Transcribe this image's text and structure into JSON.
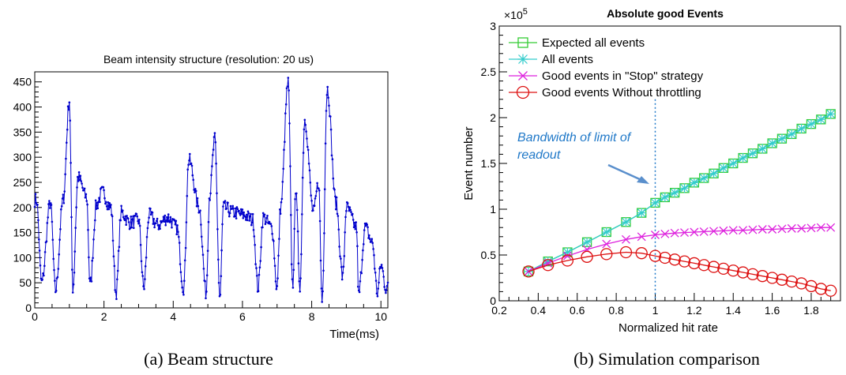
{
  "captions": {
    "a": "(a) Beam structure",
    "b": "(b) Simulation comparison"
  },
  "chart_data": [
    {
      "id": "a",
      "type": "line",
      "title": "Beam intensity structure (resolution: 20 us)",
      "xlabel": "Time(ms)",
      "ylabel": "",
      "xlim": [
        0,
        10.2
      ],
      "ylim": [
        0,
        470
      ],
      "xticks": [
        "0",
        "2",
        "4",
        "6",
        "8",
        "10"
      ],
      "yticks": [
        "0",
        "50",
        "100",
        "150",
        "200",
        "250",
        "300",
        "350",
        "400",
        "450"
      ],
      "series_color": "#0000cc",
      "peaks": [
        {
          "x": 0.05,
          "y": 215
        },
        {
          "x": 0.45,
          "y": 210
        },
        {
          "x": 0.82,
          "y": 215
        },
        {
          "x": 1.0,
          "y": 413
        },
        {
          "x": 1.25,
          "y": 260
        },
        {
          "x": 1.5,
          "y": 220
        },
        {
          "x": 1.78,
          "y": 205
        },
        {
          "x": 1.95,
          "y": 230
        },
        {
          "x": 2.2,
          "y": 200
        },
        {
          "x": 2.5,
          "y": 190
        },
        {
          "x": 2.75,
          "y": 170
        },
        {
          "x": 3.0,
          "y": 175
        },
        {
          "x": 3.3,
          "y": 185
        },
        {
          "x": 3.55,
          "y": 165
        },
        {
          "x": 3.85,
          "y": 180
        },
        {
          "x": 4.1,
          "y": 160
        },
        {
          "x": 4.45,
          "y": 295
        },
        {
          "x": 4.75,
          "y": 200
        },
        {
          "x": 5.05,
          "y": 225
        },
        {
          "x": 5.2,
          "y": 335
        },
        {
          "x": 5.45,
          "y": 200
        },
        {
          "x": 5.75,
          "y": 190
        },
        {
          "x": 6.05,
          "y": 185
        },
        {
          "x": 6.3,
          "y": 175
        },
        {
          "x": 6.6,
          "y": 180
        },
        {
          "x": 6.85,
          "y": 160
        },
        {
          "x": 7.1,
          "y": 200
        },
        {
          "x": 7.32,
          "y": 448
        },
        {
          "x": 7.55,
          "y": 245
        },
        {
          "x": 7.8,
          "y": 375
        },
        {
          "x": 8.05,
          "y": 190
        },
        {
          "x": 8.2,
          "y": 250
        },
        {
          "x": 8.45,
          "y": 437
        },
        {
          "x": 8.7,
          "y": 210
        },
        {
          "x": 9.0,
          "y": 200
        },
        {
          "x": 9.3,
          "y": 160
        },
        {
          "x": 9.55,
          "y": 160
        },
        {
          "x": 9.75,
          "y": 130
        },
        {
          "x": 10.0,
          "y": 85
        }
      ],
      "valleys": [
        {
          "x": 0.2,
          "y": 50
        },
        {
          "x": 0.6,
          "y": 35
        },
        {
          "x": 1.1,
          "y": 40
        },
        {
          "x": 1.6,
          "y": 45
        },
        {
          "x": 2.35,
          "y": 30
        },
        {
          "x": 3.15,
          "y": 40
        },
        {
          "x": 4.3,
          "y": 40
        },
        {
          "x": 4.95,
          "y": 30
        },
        {
          "x": 5.35,
          "y": 20
        },
        {
          "x": 6.45,
          "y": 40
        },
        {
          "x": 7.0,
          "y": 40
        },
        {
          "x": 7.45,
          "y": 45
        },
        {
          "x": 7.65,
          "y": 35
        },
        {
          "x": 8.3,
          "y": 15
        },
        {
          "x": 8.9,
          "y": 60
        },
        {
          "x": 9.35,
          "y": 25
        },
        {
          "x": 9.9,
          "y": 30
        },
        {
          "x": 10.15,
          "y": 40
        }
      ],
      "points_per_ms": 50
    },
    {
      "id": "b",
      "type": "line",
      "title": "Absolute good Events",
      "xlabel": "Normalized hit rate",
      "ylabel": "Event number",
      "xlim": [
        0.2,
        1.95
      ],
      "ylim": [
        0,
        3
      ],
      "y_multiplier_label": "×10",
      "y_multiplier_exp": "5",
      "xticks": [
        "0.2",
        "0.4",
        "0.6",
        "0.8",
        "1",
        "1.2",
        "1.4",
        "1.6",
        "1.8"
      ],
      "yticks": [
        "0",
        "0.5",
        "1",
        "1.5",
        "2",
        "2.5",
        "3"
      ],
      "x": [
        0.35,
        0.45,
        0.55,
        0.65,
        0.75,
        0.85,
        0.93,
        1.0,
        1.05,
        1.1,
        1.15,
        1.2,
        1.25,
        1.3,
        1.35,
        1.4,
        1.45,
        1.5,
        1.55,
        1.6,
        1.65,
        1.7,
        1.75,
        1.8,
        1.85,
        1.9
      ],
      "series": [
        {
          "name": "Expected all events",
          "color": "#33cc33",
          "marker": "square",
          "values": [
            0.32,
            0.43,
            0.53,
            0.64,
            0.75,
            0.86,
            0.96,
            1.07,
            1.13,
            1.18,
            1.23,
            1.29,
            1.34,
            1.39,
            1.45,
            1.5,
            1.56,
            1.61,
            1.66,
            1.72,
            1.77,
            1.82,
            1.88,
            1.93,
            1.98,
            2.04
          ]
        },
        {
          "name": "All events",
          "color": "#33cccc",
          "marker": "star",
          "values": [
            0.32,
            0.43,
            0.53,
            0.64,
            0.75,
            0.86,
            0.96,
            1.07,
            1.13,
            1.18,
            1.23,
            1.29,
            1.34,
            1.39,
            1.45,
            1.5,
            1.56,
            1.61,
            1.66,
            1.72,
            1.77,
            1.82,
            1.88,
            1.93,
            1.98,
            2.04
          ]
        },
        {
          "name": "Good events in \"Stop\" strategy",
          "color": "#dd22dd",
          "marker": "x",
          "values": [
            0.32,
            0.41,
            0.49,
            0.56,
            0.62,
            0.67,
            0.7,
            0.72,
            0.73,
            0.74,
            0.745,
            0.75,
            0.755,
            0.76,
            0.765,
            0.77,
            0.77,
            0.775,
            0.78,
            0.78,
            0.785,
            0.79,
            0.79,
            0.795,
            0.8,
            0.8
          ]
        },
        {
          "name": "Good events Without throttling",
          "color": "#dd1111",
          "marker": "circle",
          "values": [
            0.32,
            0.39,
            0.44,
            0.48,
            0.51,
            0.53,
            0.52,
            0.49,
            0.47,
            0.45,
            0.43,
            0.41,
            0.39,
            0.37,
            0.35,
            0.33,
            0.31,
            0.29,
            0.27,
            0.25,
            0.23,
            0.21,
            0.19,
            0.16,
            0.13,
            0.11
          ]
        }
      ],
      "legend_placement": "top-left",
      "vline_x": 1.0,
      "annotation": "Bandwidth of limit of readout",
      "annotation_lines": [
        "Bandwidth of limit of",
        "readout"
      ]
    }
  ]
}
